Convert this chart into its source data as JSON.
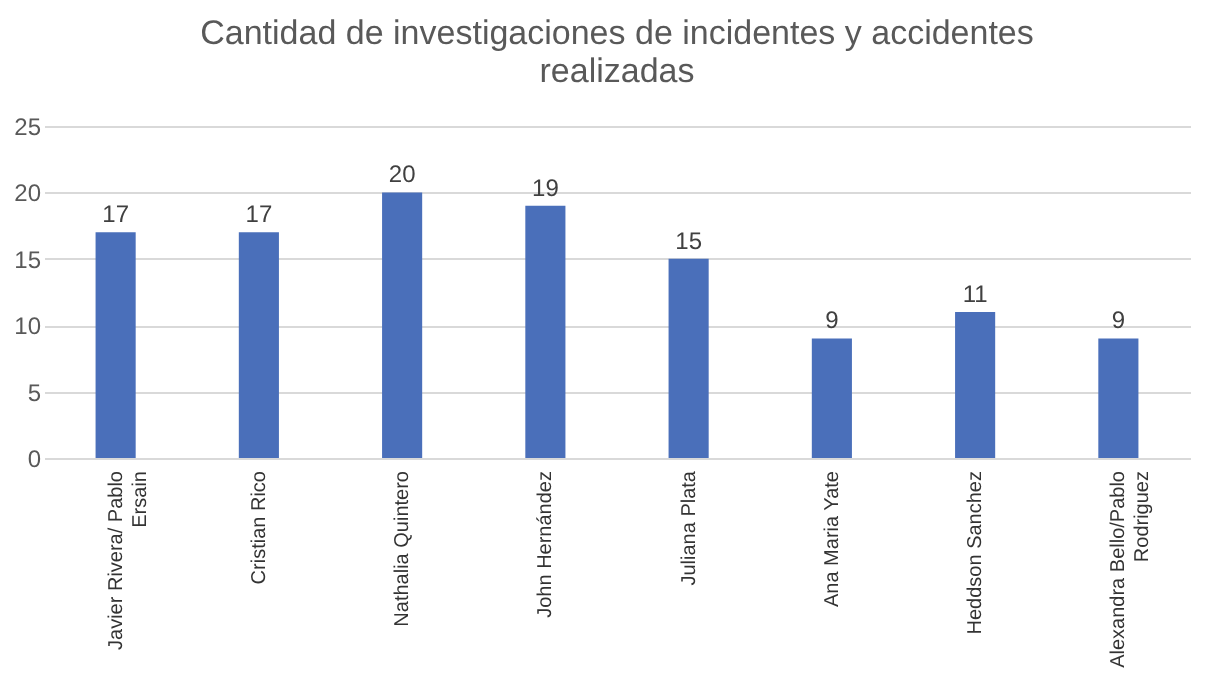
{
  "chart_data": {
    "type": "bar",
    "title": "Cantidad de investigaciones de incidentes y accidentes realizadas",
    "categories": [
      "Javier Rivera/ Pablo Ersain",
      "Cristian Rico",
      "Nathalia Quintero",
      "John Hernández",
      "Juliana Plata",
      "Ana Maria Yate",
      "Heddson Sanchez",
      "Alexandra Bello/Pablo Rodriguez"
    ],
    "values": [
      17,
      17,
      20,
      19,
      15,
      9,
      11,
      9
    ],
    "color": "#4a6fba",
    "ylim": [
      0,
      25
    ],
    "yticks": [
      0,
      5,
      10,
      15,
      20,
      25
    ],
    "grid": "y",
    "data_labels": true
  }
}
